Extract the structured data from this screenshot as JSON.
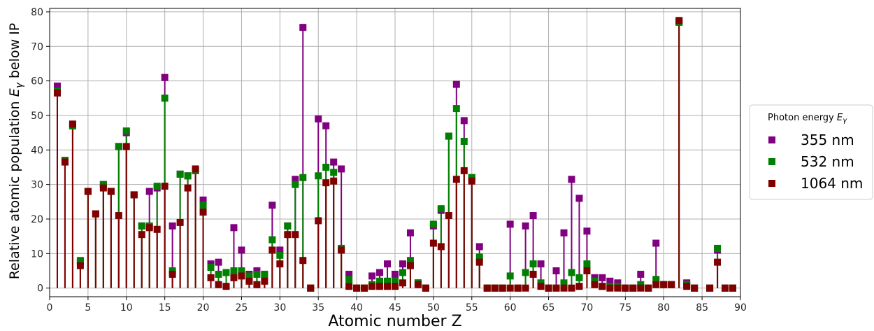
{
  "chart_data": {
    "type": "scatter",
    "style": "stem",
    "title": "",
    "xlabel": "Atomic number Z",
    "ylabel": "Relative atomic population",
    "ylabel_symbol": "E",
    "ylabel_subscript": "γ",
    "ylabel_suffix": "below IP",
    "xlim": [
      0,
      90
    ],
    "ylim": [
      -2.5,
      81
    ],
    "xticks": [
      0,
      5,
      10,
      15,
      20,
      25,
      30,
      35,
      40,
      45,
      50,
      55,
      60,
      65,
      70,
      75,
      80,
      85,
      90
    ],
    "yticks": [
      0,
      10,
      20,
      30,
      40,
      50,
      60,
      70,
      80
    ],
    "grid": true,
    "legend_position": "outside-right",
    "legend_title": "Photon energy",
    "legend_title_symbol": "E",
    "legend_title_subscript": "γ",
    "series": [
      {
        "name": "355 nm",
        "color": "#800080",
        "points": [
          [
            1,
            58.5
          ],
          [
            2,
            37
          ],
          [
            3,
            47
          ],
          [
            4,
            7.5
          ],
          [
            5,
            28
          ],
          [
            6,
            21.5
          ],
          [
            7,
            30
          ],
          [
            8,
            28
          ],
          [
            9,
            41
          ],
          [
            10,
            45
          ],
          [
            11,
            27
          ],
          [
            12,
            18
          ],
          [
            13,
            28
          ],
          [
            14,
            29
          ],
          [
            15,
            61
          ],
          [
            16,
            18
          ],
          [
            17,
            33
          ],
          [
            18,
            32.5
          ],
          [
            19,
            34
          ],
          [
            20,
            25.5
          ],
          [
            21,
            7
          ],
          [
            22,
            7.5
          ],
          [
            23,
            4.5
          ],
          [
            24,
            17.5
          ],
          [
            25,
            11
          ],
          [
            26,
            4
          ],
          [
            27,
            5
          ],
          [
            28,
            4
          ],
          [
            29,
            24
          ],
          [
            30,
            11
          ],
          [
            31,
            18
          ],
          [
            32,
            31.5
          ],
          [
            33,
            75.5
          ],
          [
            34,
            0
          ],
          [
            35,
            49
          ],
          [
            36,
            47
          ],
          [
            37,
            36.5
          ],
          [
            38,
            34.5
          ],
          [
            39,
            4
          ],
          [
            40,
            0
          ],
          [
            41,
            0
          ],
          [
            42,
            3.5
          ],
          [
            43,
            4.5
          ],
          [
            44,
            7
          ],
          [
            45,
            4
          ],
          [
            46,
            7
          ],
          [
            47,
            16
          ],
          [
            48,
            1.5
          ],
          [
            49,
            0
          ],
          [
            50,
            18
          ],
          [
            51,
            22.5
          ],
          [
            52,
            44
          ],
          [
            53,
            59
          ],
          [
            54,
            48.5
          ],
          [
            55,
            32
          ],
          [
            56,
            12
          ],
          [
            57,
            0
          ],
          [
            58,
            0
          ],
          [
            59,
            0
          ],
          [
            60,
            18.5
          ],
          [
            61,
            0
          ],
          [
            62,
            18
          ],
          [
            63,
            21
          ],
          [
            64,
            7
          ],
          [
            65,
            0
          ],
          [
            66,
            5
          ],
          [
            67,
            16
          ],
          [
            68,
            31.5
          ],
          [
            69,
            26
          ],
          [
            70,
            16.5
          ],
          [
            71,
            3
          ],
          [
            72,
            3
          ],
          [
            73,
            2
          ],
          [
            74,
            1.5
          ],
          [
            75,
            0
          ],
          [
            76,
            0
          ],
          [
            77,
            4
          ],
          [
            78,
            0
          ],
          [
            79,
            13
          ],
          [
            80,
            1
          ],
          [
            81,
            1
          ],
          [
            82,
            77
          ],
          [
            83,
            1.5
          ],
          [
            84,
            0
          ],
          [
            86,
            0
          ],
          [
            87,
            11
          ],
          [
            88,
            0
          ],
          [
            89,
            0
          ]
        ]
      },
      {
        "name": "532 nm",
        "color": "#008000",
        "points": [
          [
            1,
            57
          ],
          [
            2,
            37
          ],
          [
            3,
            47
          ],
          [
            4,
            8
          ],
          [
            5,
            28
          ],
          [
            6,
            21.5
          ],
          [
            7,
            30
          ],
          [
            8,
            28
          ],
          [
            9,
            41
          ],
          [
            10,
            45.5
          ],
          [
            11,
            27
          ],
          [
            12,
            18
          ],
          [
            13,
            18
          ],
          [
            14,
            29.5
          ],
          [
            15,
            55
          ],
          [
            16,
            5
          ],
          [
            17,
            33
          ],
          [
            18,
            32.5
          ],
          [
            19,
            34
          ],
          [
            20,
            24
          ],
          [
            21,
            6
          ],
          [
            22,
            4
          ],
          [
            23,
            4.5
          ],
          [
            24,
            5
          ],
          [
            25,
            5
          ],
          [
            26,
            3.5
          ],
          [
            27,
            4
          ],
          [
            28,
            4
          ],
          [
            29,
            14
          ],
          [
            30,
            9.5
          ],
          [
            31,
            18
          ],
          [
            32,
            30
          ],
          [
            33,
            32
          ],
          [
            34,
            0
          ],
          [
            35,
            32.5
          ],
          [
            36,
            35
          ],
          [
            37,
            33.5
          ],
          [
            38,
            11.5
          ],
          [
            39,
            2.5
          ],
          [
            40,
            0
          ],
          [
            41,
            0
          ],
          [
            42,
            1
          ],
          [
            43,
            2
          ],
          [
            44,
            2
          ],
          [
            45,
            2
          ],
          [
            46,
            4.5
          ],
          [
            47,
            8
          ],
          [
            48,
            1.5
          ],
          [
            49,
            0
          ],
          [
            50,
            18.5
          ],
          [
            51,
            23
          ],
          [
            52,
            44
          ],
          [
            53,
            52
          ],
          [
            54,
            42.5
          ],
          [
            55,
            32
          ],
          [
            56,
            9
          ],
          [
            57,
            0
          ],
          [
            58,
            0
          ],
          [
            59,
            0
          ],
          [
            60,
            3.5
          ],
          [
            61,
            0
          ],
          [
            62,
            4.5
          ],
          [
            63,
            7
          ],
          [
            64,
            1.5
          ],
          [
            65,
            0
          ],
          [
            66,
            0
          ],
          [
            67,
            1.5
          ],
          [
            68,
            4.5
          ],
          [
            69,
            3
          ],
          [
            70,
            7
          ],
          [
            71,
            2
          ],
          [
            72,
            0.5
          ],
          [
            73,
            0.5
          ],
          [
            74,
            0.5
          ],
          [
            75,
            0
          ],
          [
            76,
            0
          ],
          [
            77,
            1
          ],
          [
            78,
            0
          ],
          [
            79,
            2.5
          ],
          [
            80,
            1
          ],
          [
            81,
            1
          ],
          [
            82,
            77
          ],
          [
            83,
            1
          ],
          [
            84,
            0
          ],
          [
            86,
            0
          ],
          [
            87,
            11.5
          ],
          [
            88,
            0
          ],
          [
            89,
            0
          ]
        ]
      },
      {
        "name": "1064 nm",
        "color": "#800000",
        "points": [
          [
            1,
            56.5
          ],
          [
            2,
            36.5
          ],
          [
            3,
            47.5
          ],
          [
            4,
            6.5
          ],
          [
            5,
            28
          ],
          [
            6,
            21.5
          ],
          [
            7,
            29
          ],
          [
            8,
            28
          ],
          [
            9,
            21
          ],
          [
            10,
            41
          ],
          [
            11,
            27
          ],
          [
            12,
            15.5
          ],
          [
            13,
            17.5
          ],
          [
            14,
            17
          ],
          [
            15,
            29.5
          ],
          [
            16,
            4
          ],
          [
            17,
            19
          ],
          [
            18,
            29
          ],
          [
            19,
            34.5
          ],
          [
            20,
            22
          ],
          [
            21,
            3
          ],
          [
            22,
            1
          ],
          [
            23,
            0.5
          ],
          [
            24,
            3
          ],
          [
            25,
            3.5
          ],
          [
            26,
            2
          ],
          [
            27,
            1
          ],
          [
            28,
            2
          ],
          [
            29,
            11
          ],
          [
            30,
            7
          ],
          [
            31,
            15.5
          ],
          [
            32,
            15.5
          ],
          [
            33,
            8
          ],
          [
            34,
            0
          ],
          [
            35,
            19.5
          ],
          [
            36,
            30.5
          ],
          [
            37,
            31
          ],
          [
            38,
            11
          ],
          [
            39,
            0.5
          ],
          [
            40,
            0
          ],
          [
            41,
            0
          ],
          [
            42,
            0.5
          ],
          [
            43,
            0.5
          ],
          [
            44,
            0.5
          ],
          [
            45,
            0.5
          ],
          [
            46,
            1.5
          ],
          [
            47,
            6.5
          ],
          [
            48,
            1
          ],
          [
            49,
            0
          ],
          [
            50,
            13
          ],
          [
            51,
            12
          ],
          [
            52,
            21
          ],
          [
            53,
            31.5
          ],
          [
            54,
            34
          ],
          [
            55,
            31
          ],
          [
            56,
            7.5
          ],
          [
            57,
            0
          ],
          [
            58,
            0
          ],
          [
            59,
            0
          ],
          [
            60,
            0
          ],
          [
            61,
            0
          ],
          [
            62,
            0
          ],
          [
            63,
            4
          ],
          [
            64,
            0.5
          ],
          [
            65,
            0
          ],
          [
            66,
            0
          ],
          [
            67,
            0
          ],
          [
            68,
            0
          ],
          [
            69,
            0.5
          ],
          [
            70,
            5
          ],
          [
            71,
            1
          ],
          [
            72,
            0.5
          ],
          [
            73,
            0
          ],
          [
            74,
            0
          ],
          [
            75,
            0
          ],
          [
            76,
            0
          ],
          [
            77,
            0
          ],
          [
            78,
            0
          ],
          [
            79,
            1
          ],
          [
            80,
            1
          ],
          [
            81,
            1
          ],
          [
            82,
            77.5
          ],
          [
            83,
            0.5
          ],
          [
            84,
            0
          ],
          [
            86,
            0
          ],
          [
            87,
            7.5
          ],
          [
            88,
            0
          ],
          [
            89,
            0
          ]
        ]
      }
    ]
  }
}
